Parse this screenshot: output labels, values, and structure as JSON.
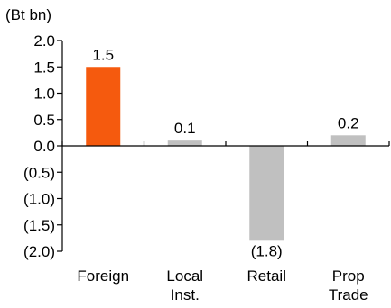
{
  "chart_data": {
    "type": "bar",
    "unit_label": "(Bt bn)",
    "categories": [
      [
        "Foreign"
      ],
      [
        "Local",
        "Inst."
      ],
      [
        "Retail"
      ],
      [
        "Prop",
        "Trade"
      ]
    ],
    "values": [
      1.5,
      0.1,
      -1.8,
      0.2
    ],
    "data_labels": [
      "1.5",
      "0.1",
      "(1.8)",
      "0.2"
    ],
    "ylim": [
      -2.0,
      2.0
    ],
    "yticks": [
      2.0,
      1.5,
      1.0,
      0.5,
      0.0,
      -0.5,
      -1.0,
      -1.5,
      -2.0
    ],
    "ytick_labels": [
      "2.0",
      "1.5",
      "1.0",
      "0.5",
      "0.0",
      "(0.5)",
      "(1.0)",
      "(1.5)",
      "(2.0)"
    ],
    "colors": [
      "#f55a0e",
      "#c0c0c0",
      "#c0c0c0",
      "#c0c0c0"
    ],
    "grid": false,
    "legend": "none"
  }
}
